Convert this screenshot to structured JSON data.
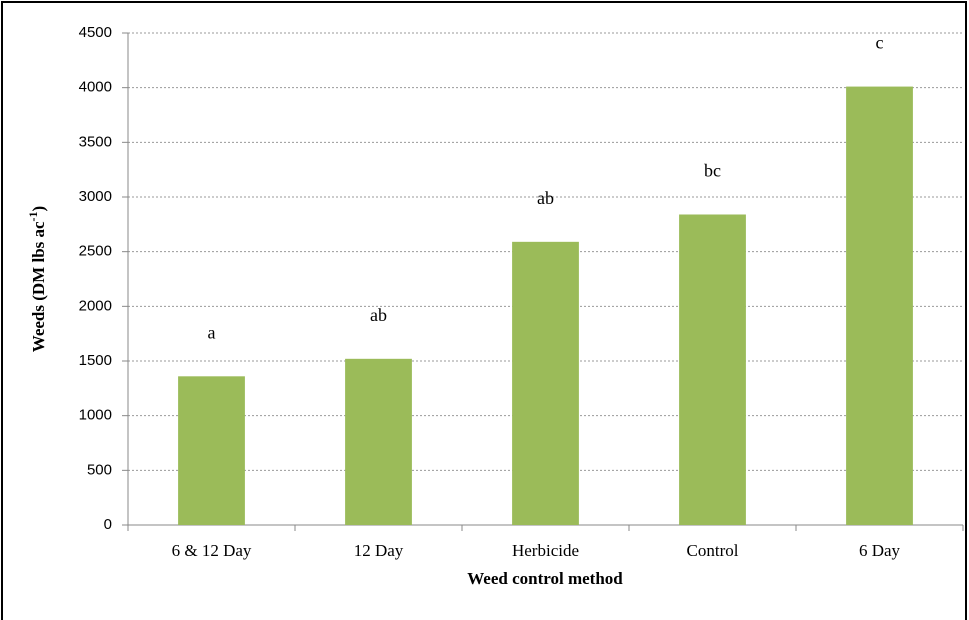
{
  "chart_data": {
    "type": "bar",
    "x_label": "Weed control method",
    "y_label": [
      "Weeds (DM lbs ac",
      "-1",
      ")"
    ],
    "categories": [
      "6 & 12 Day",
      "12 Day",
      "Herbicide",
      "Control",
      "6 Day"
    ],
    "values": [
      1360,
      1520,
      2590,
      2840,
      4010
    ],
    "annotations": [
      "a",
      "ab",
      "ab",
      "bc",
      "c"
    ],
    "color": "#9bbb59",
    "ylim": [
      0,
      4500
    ],
    "yticks": [
      0,
      500,
      1000,
      1500,
      2000,
      2500,
      3000,
      3500,
      4000,
      4500
    ],
    "grid": true
  }
}
